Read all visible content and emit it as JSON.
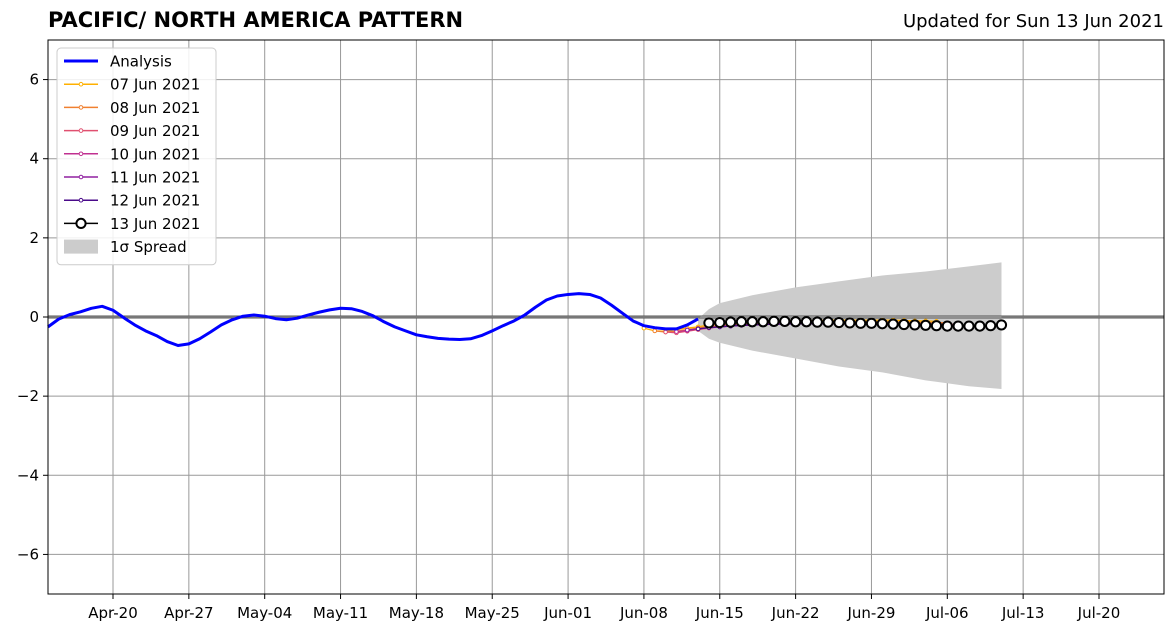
{
  "header": {
    "title": "PACIFIC/ NORTH AMERICA PATTERN",
    "subtitle": "Updated for Sun 13 Jun 2021"
  },
  "colors": {
    "analysis": "#0000ff",
    "spread": "#cccccc",
    "grid": "#999999",
    "zero_line": "#555555"
  },
  "chart_data": {
    "type": "line",
    "title": "PACIFIC/ NORTH AMERICA PATTERN",
    "subtitle": "Updated for Sun 13 Jun 2021",
    "xlabel": "",
    "ylabel": "",
    "x_unit": "date",
    "xlim": [
      "2021-04-14",
      "2021-07-26"
    ],
    "ylim": [
      -7,
      7
    ],
    "yticks": [
      -6,
      -4,
      -2,
      0,
      2,
      4,
      6
    ],
    "ytick_labels": [
      "−6",
      "−4",
      "−2",
      "0",
      "2",
      "4",
      "6"
    ],
    "xticks": [
      "2021-04-20",
      "2021-04-27",
      "2021-05-04",
      "2021-05-11",
      "2021-05-18",
      "2021-05-25",
      "2021-06-01",
      "2021-06-08",
      "2021-06-15",
      "2021-06-22",
      "2021-06-29",
      "2021-07-06",
      "2021-07-13",
      "2021-07-20"
    ],
    "xtick_labels": [
      "Apr-20",
      "Apr-27",
      "May-04",
      "May-11",
      "May-18",
      "May-25",
      "Jun-01",
      "Jun-08",
      "Jun-15",
      "Jun-22",
      "Jun-29",
      "Jul-06",
      "Jul-13",
      "Jul-20"
    ],
    "grid": true,
    "legend_position": "upper-left",
    "analysis": {
      "name": "Analysis",
      "color": "#0000ff",
      "x": [
        "2021-04-14",
        "2021-04-15",
        "2021-04-16",
        "2021-04-17",
        "2021-04-18",
        "2021-04-19",
        "2021-04-20",
        "2021-04-21",
        "2021-04-22",
        "2021-04-23",
        "2021-04-24",
        "2021-04-25",
        "2021-04-26",
        "2021-04-27",
        "2021-04-28",
        "2021-04-29",
        "2021-04-30",
        "2021-05-01",
        "2021-05-02",
        "2021-05-03",
        "2021-05-04",
        "2021-05-05",
        "2021-05-06",
        "2021-05-07",
        "2021-05-08",
        "2021-05-09",
        "2021-05-10",
        "2021-05-11",
        "2021-05-12",
        "2021-05-13",
        "2021-05-14",
        "2021-05-15",
        "2021-05-16",
        "2021-05-17",
        "2021-05-18",
        "2021-05-19",
        "2021-05-20",
        "2021-05-21",
        "2021-05-22",
        "2021-05-23",
        "2021-05-24",
        "2021-05-25",
        "2021-05-26",
        "2021-05-27",
        "2021-05-28",
        "2021-05-29",
        "2021-05-30",
        "2021-05-31",
        "2021-06-01",
        "2021-06-02",
        "2021-06-03",
        "2021-06-04",
        "2021-06-05",
        "2021-06-06",
        "2021-06-07",
        "2021-06-08",
        "2021-06-09",
        "2021-06-10",
        "2021-06-11",
        "2021-06-12",
        "2021-06-13"
      ],
      "values": [
        -0.25,
        -0.05,
        0.06,
        0.13,
        0.22,
        0.27,
        0.17,
        -0.02,
        -0.2,
        -0.35,
        -0.47,
        -0.62,
        -0.72,
        -0.68,
        -0.55,
        -0.38,
        -0.2,
        -0.07,
        0.02,
        0.05,
        0.02,
        -0.04,
        -0.07,
        -0.03,
        0.05,
        0.12,
        0.18,
        0.22,
        0.21,
        0.14,
        0.03,
        -0.12,
        -0.25,
        -0.35,
        -0.45,
        -0.5,
        -0.54,
        -0.56,
        -0.57,
        -0.55,
        -0.47,
        -0.35,
        -0.22,
        -0.1,
        0.05,
        0.25,
        0.43,
        0.53,
        0.57,
        0.59,
        0.57,
        0.48,
        0.3,
        0.1,
        -0.1,
        -0.22,
        -0.27,
        -0.3,
        -0.3,
        -0.2,
        -0.05
      ]
    },
    "forecasts": [
      {
        "name": "07 Jun 2021",
        "color": "#ffb000",
        "start": "2021-06-08",
        "values": [
          -0.28,
          -0.35,
          -0.36,
          -0.32,
          -0.28,
          -0.25,
          -0.2,
          -0.17,
          -0.15,
          -0.13,
          -0.12,
          -0.12,
          -0.11,
          -0.1,
          -0.1,
          -0.09,
          -0.09,
          -0.08,
          -0.08,
          -0.08,
          -0.08,
          -0.08,
          -0.08,
          -0.08,
          -0.09,
          -0.1,
          -0.1,
          -0.11
        ]
      },
      {
        "name": "08 Jun 2021",
        "color": "#f08030",
        "start": "2021-06-09",
        "values": [
          -0.35,
          -0.38,
          -0.36,
          -0.32,
          -0.28,
          -0.24,
          -0.21,
          -0.19,
          -0.18,
          -0.17,
          -0.16,
          -0.15,
          -0.15,
          -0.14,
          -0.13,
          -0.13,
          -0.12,
          -0.12,
          -0.12,
          -0.12,
          -0.12,
          -0.12,
          -0.12,
          -0.13,
          -0.13,
          -0.14,
          -0.14,
          -0.15
        ]
      },
      {
        "name": "09 Jun 2021",
        "color": "#e05070",
        "start": "2021-06-10",
        "values": [
          -0.38,
          -0.4,
          -0.36,
          -0.32,
          -0.28,
          -0.25,
          -0.23,
          -0.21,
          -0.2,
          -0.19,
          -0.18,
          -0.17,
          -0.16,
          -0.16,
          -0.15,
          -0.15,
          -0.15,
          -0.15,
          -0.15,
          -0.15,
          -0.15,
          -0.16,
          -0.16,
          -0.17,
          -0.17,
          -0.18,
          -0.18,
          -0.19
        ]
      },
      {
        "name": "10 Jun 2021",
        "color": "#c03090",
        "start": "2021-06-11",
        "values": [
          -0.37,
          -0.34,
          -0.3,
          -0.27,
          -0.24,
          -0.22,
          -0.2,
          -0.19,
          -0.18,
          -0.17,
          -0.17,
          -0.16,
          -0.16,
          -0.16,
          -0.16,
          -0.16,
          -0.16,
          -0.17,
          -0.17,
          -0.18,
          -0.18,
          -0.19,
          -0.19,
          -0.2,
          -0.2,
          -0.21,
          -0.21,
          -0.22
        ]
      },
      {
        "name": "11 Jun 2021",
        "color": "#9020a0",
        "start": "2021-06-12",
        "values": [
          -0.33,
          -0.3,
          -0.27,
          -0.25,
          -0.23,
          -0.21,
          -0.2,
          -0.19,
          -0.18,
          -0.18,
          -0.17,
          -0.17,
          -0.17,
          -0.17,
          -0.17,
          -0.18,
          -0.18,
          -0.18,
          -0.19,
          -0.19,
          -0.2,
          -0.2,
          -0.21,
          -0.21,
          -0.22,
          -0.22,
          -0.23,
          -0.23
        ]
      },
      {
        "name": "12 Jun 2021",
        "color": "#4a0a8a",
        "start": "2021-06-13",
        "values": [
          -0.3,
          -0.27,
          -0.25,
          -0.23,
          -0.21,
          -0.2,
          -0.19,
          -0.18,
          -0.18,
          -0.17,
          -0.17,
          -0.17,
          -0.17,
          -0.17,
          -0.18,
          -0.18,
          -0.18,
          -0.19,
          -0.19,
          -0.2,
          -0.2,
          -0.21,
          -0.21,
          -0.22,
          -0.22,
          -0.23,
          -0.23,
          -0.24
        ]
      },
      {
        "name": "13 Jun 2021",
        "color": "#000000",
        "start": "2021-06-14",
        "marker": "open-circle",
        "values": [
          -0.15,
          -0.14,
          -0.13,
          -0.12,
          -0.12,
          -0.12,
          -0.11,
          -0.11,
          -0.12,
          -0.12,
          -0.13,
          -0.13,
          -0.14,
          -0.15,
          -0.16,
          -0.16,
          -0.17,
          -0.18,
          -0.19,
          -0.2,
          -0.21,
          -0.22,
          -0.23,
          -0.23,
          -0.23,
          -0.23,
          -0.22,
          -0.2
        ]
      }
    ],
    "spread": {
      "name": "1σ Spread",
      "color": "#cccccc",
      "x": [
        "2021-06-13",
        "2021-06-14",
        "2021-06-15",
        "2021-06-18",
        "2021-06-22",
        "2021-06-26",
        "2021-06-30",
        "2021-07-04",
        "2021-07-08",
        "2021-07-11"
      ],
      "upper": [
        -0.05,
        0.2,
        0.35,
        0.55,
        0.75,
        0.9,
        1.05,
        1.15,
        1.28,
        1.38
      ],
      "lower": [
        -0.35,
        -0.55,
        -0.65,
        -0.85,
        -1.05,
        -1.25,
        -1.4,
        -1.6,
        -1.75,
        -1.82
      ]
    },
    "legend": [
      {
        "label": "Analysis",
        "style": "line",
        "color": "#0000ff"
      },
      {
        "label": "07 Jun 2021",
        "style": "line-dot",
        "color": "#ffb000"
      },
      {
        "label": "08 Jun 2021",
        "style": "line-dot",
        "color": "#f08030"
      },
      {
        "label": "09 Jun 2021",
        "style": "line-dot",
        "color": "#e05070"
      },
      {
        "label": "10 Jun 2021",
        "style": "line-dot",
        "color": "#c03090"
      },
      {
        "label": "11 Jun 2021",
        "style": "line-dot",
        "color": "#9020a0"
      },
      {
        "label": "12 Jun 2021",
        "style": "line-dot",
        "color": "#4a0a8a"
      },
      {
        "label": "13 Jun 2021",
        "style": "line-circle",
        "color": "#000000"
      },
      {
        "label": "1σ Spread",
        "style": "patch",
        "color": "#cccccc"
      }
    ]
  }
}
